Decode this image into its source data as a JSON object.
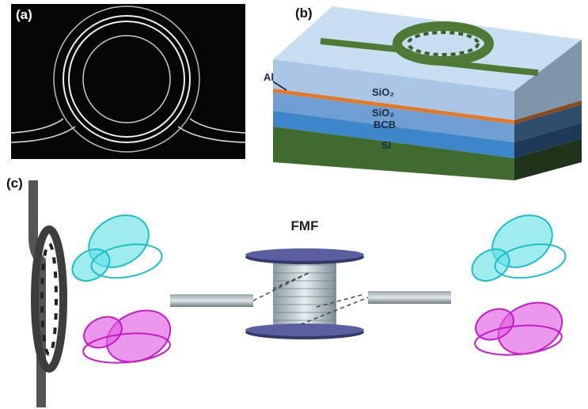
{
  "labels": {
    "a": "(a)",
    "b": "(b)",
    "c": "(c)"
  },
  "layers": {
    "al": "Al",
    "sio2_top": "SiO₂",
    "sio2_bottom": "SiO₂",
    "bcb": "BCB",
    "si": "Si"
  },
  "fiber": "FMF"
}
